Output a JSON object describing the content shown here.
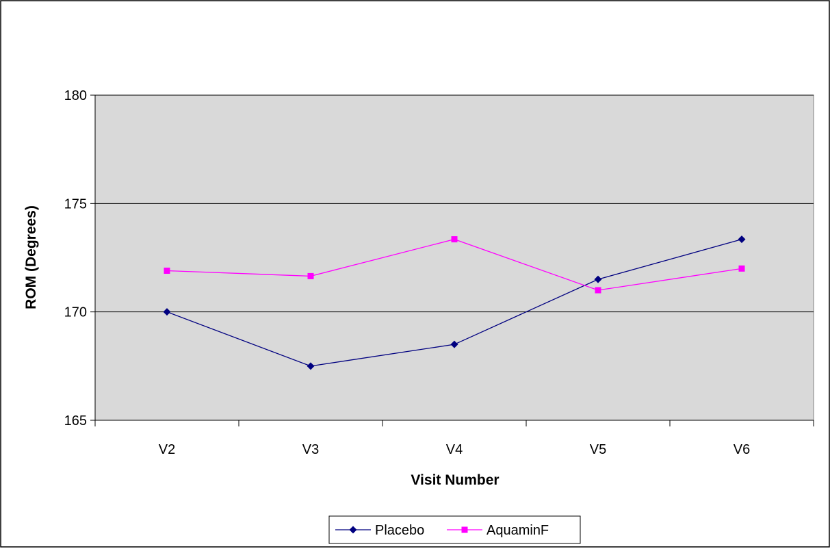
{
  "chart_data": {
    "type": "line",
    "title": "",
    "xlabel": "Visit Number",
    "ylabel": "ROM (Degrees)",
    "categories": [
      "V2",
      "V3",
      "V4",
      "V5",
      "V6"
    ],
    "ylim": [
      165,
      180
    ],
    "yticks": [
      "165",
      "170",
      "175",
      "180"
    ],
    "grid": "horizontal",
    "plot_background": "#d9d9d9",
    "legend_position": "bottom",
    "series": [
      {
        "name": "Placebo",
        "values": [
          170.0,
          167.5,
          168.5,
          171.5,
          173.35
        ],
        "color": "#000080",
        "marker": "diamond"
      },
      {
        "name": "AquaminF",
        "values": [
          171.9,
          171.65,
          173.35,
          171.0,
          172.0
        ],
        "color": "#ff00ff",
        "marker": "square"
      }
    ]
  }
}
